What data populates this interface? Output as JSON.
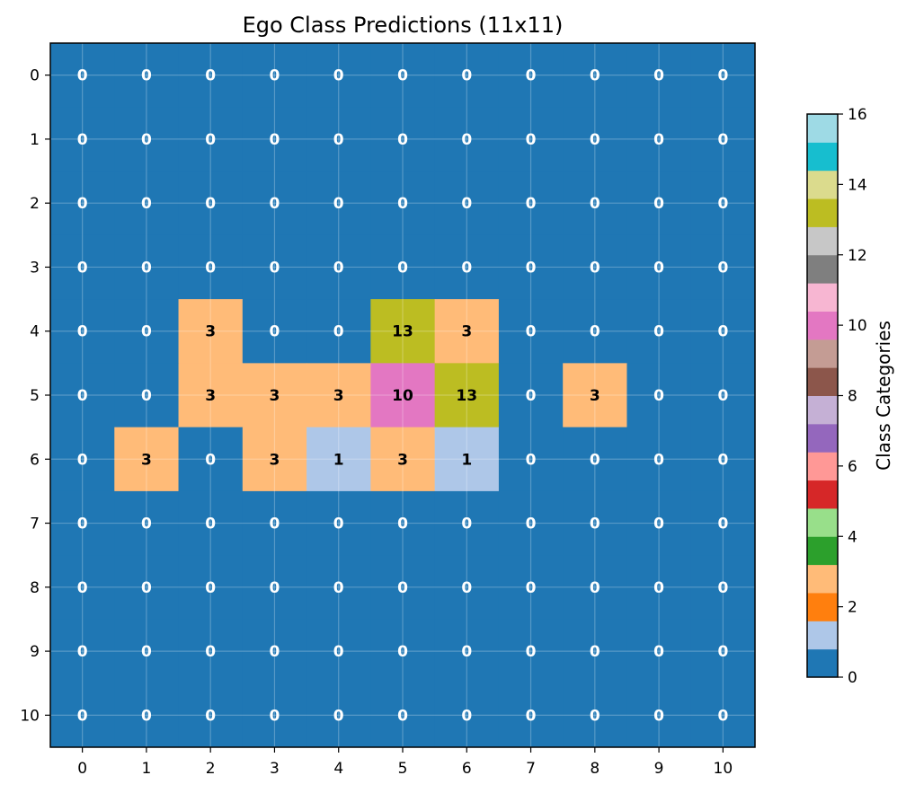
{
  "chart_data": {
    "type": "heatmap",
    "title": "Ego Class Predictions (11x11)",
    "xlabel": "",
    "ylabel": "",
    "x_categories": [
      "0",
      "1",
      "2",
      "3",
      "4",
      "5",
      "6",
      "7",
      "8",
      "9",
      "10"
    ],
    "y_categories": [
      "0",
      "1",
      "2",
      "3",
      "4",
      "5",
      "6",
      "7",
      "8",
      "9",
      "10"
    ],
    "values": [
      [
        0,
        0,
        0,
        0,
        0,
        0,
        0,
        0,
        0,
        0,
        0
      ],
      [
        0,
        0,
        0,
        0,
        0,
        0,
        0,
        0,
        0,
        0,
        0
      ],
      [
        0,
        0,
        0,
        0,
        0,
        0,
        0,
        0,
        0,
        0,
        0
      ],
      [
        0,
        0,
        0,
        0,
        0,
        0,
        0,
        0,
        0,
        0,
        0
      ],
      [
        0,
        0,
        3,
        0,
        0,
        13,
        3,
        0,
        0,
        0,
        0
      ],
      [
        0,
        0,
        3,
        3,
        3,
        10,
        13,
        0,
        3,
        0,
        0
      ],
      [
        0,
        3,
        0,
        3,
        1,
        3,
        1,
        0,
        0,
        0,
        0
      ],
      [
        0,
        0,
        0,
        0,
        0,
        0,
        0,
        0,
        0,
        0,
        0
      ],
      [
        0,
        0,
        0,
        0,
        0,
        0,
        0,
        0,
        0,
        0,
        0
      ],
      [
        0,
        0,
        0,
        0,
        0,
        0,
        0,
        0,
        0,
        0,
        0
      ],
      [
        0,
        0,
        0,
        0,
        0,
        0,
        0,
        0,
        0,
        0,
        0
      ]
    ],
    "grid": true,
    "colorbar": {
      "label": "Class Categories",
      "range": [
        0,
        16
      ],
      "ticks": [
        "0",
        "2",
        "4",
        "6",
        "8",
        "10",
        "12",
        "14",
        "16"
      ],
      "colormap": "tab20",
      "colors": [
        "#1f77b4",
        "#aec7e8",
        "#ff7f0e",
        "#ffbb78",
        "#2ca02c",
        "#98df8a",
        "#d62728",
        "#ff9896",
        "#9467bd",
        "#c5b0d5",
        "#8c564b",
        "#c49c94",
        "#e377c2",
        "#f7b6d2",
        "#7f7f7f",
        "#c7c7c7",
        "#bcbd22",
        "#dbdb8d",
        "#17becf",
        "#9edae5"
      ]
    }
  }
}
